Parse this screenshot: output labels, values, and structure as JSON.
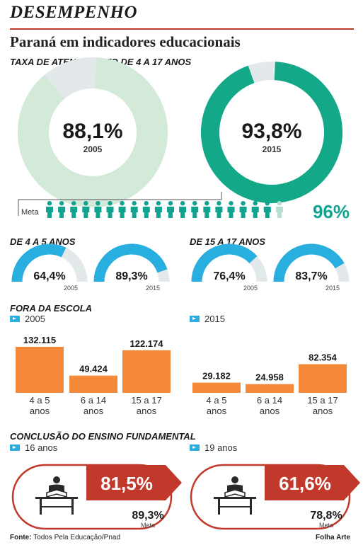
{
  "kicker": "DESEMPENHO",
  "headline": "Paraná em indicadores educacionais",
  "colors": {
    "light_green": "#d3ead9",
    "teal": "#12a888",
    "blue": "#29aee0",
    "grey_track": "#e3e8ea",
    "orange": "#f4893a",
    "red": "#c0392b",
    "icon_teal": "#11a290"
  },
  "chart_data": [
    {
      "type": "pie",
      "id": "atendimento",
      "title": "TAXA DE ATENDIMENTO DE 4 A 17 ANOS",
      "items": [
        {
          "year": "2005",
          "value": 88.1,
          "label": "88,1%"
        },
        {
          "year": "2015",
          "value": 93.8,
          "label": "93,8%"
        }
      ],
      "goal": {
        "label": "Meta",
        "value": 96,
        "value_label": "96%"
      }
    },
    {
      "type": "pie",
      "id": "faixa-4-5",
      "title": "DE 4 A 5 ANOS",
      "items": [
        {
          "year": "2005",
          "value": 64.4,
          "label": "64,4%"
        },
        {
          "year": "2015",
          "value": 89.3,
          "label": "89,3%"
        }
      ]
    },
    {
      "type": "pie",
      "id": "faixa-15-17",
      "title": "DE 15 A 17 ANOS",
      "items": [
        {
          "year": "2005",
          "value": 76.4,
          "label": "76,4%"
        },
        {
          "year": "2015",
          "value": 83.7,
          "label": "83,7%"
        }
      ]
    },
    {
      "type": "bar",
      "id": "fora-da-escola",
      "title": "FORA DA ESCOLA",
      "categories": [
        "4 a 5 anos",
        "6 a 14 anos",
        "15 a 17 anos"
      ],
      "category_lines": [
        [
          "4 a 5",
          "anos"
        ],
        [
          "6 a 14",
          "anos"
        ],
        [
          "15 a 17",
          "anos"
        ]
      ],
      "series": [
        {
          "name": "2005",
          "values": [
            132115,
            49424,
            122174
          ],
          "value_labels": [
            "132.115",
            "49.424",
            "122.174"
          ]
        },
        {
          "name": "2015",
          "values": [
            29182,
            24958,
            82354
          ],
          "value_labels": [
            "29.182",
            "24.958",
            "82.354"
          ]
        }
      ],
      "ylim": [
        0,
        132115
      ]
    },
    {
      "type": "bar",
      "id": "conclusao",
      "title": "CONCLUSÃO DO ENSINO FUNDAMENTAL",
      "items": [
        {
          "name": "16 anos",
          "value": 81.5,
          "label": "81,5%",
          "goal_value": 89.3,
          "goal_label": "89,3%",
          "goal_caption": "Meta"
        },
        {
          "name": "19 anos",
          "value": 61.6,
          "label": "61,6%",
          "goal_value": 78.8,
          "goal_label": "78,8%",
          "goal_caption": "Meta"
        }
      ]
    }
  ],
  "footer": {
    "source_label": "Fonte:",
    "source_text": " Todos Pela Educação/Pnad",
    "credit": "Folha Arte"
  }
}
